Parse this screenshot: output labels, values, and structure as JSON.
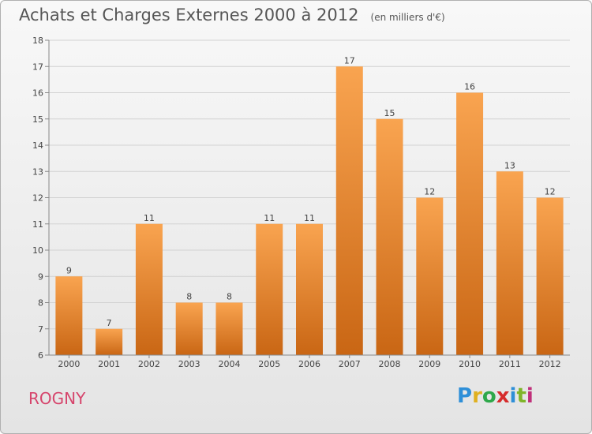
{
  "header": {
    "title": "Achats et Charges Externes 2000 à 2012",
    "unit": "(en milliers d'€)"
  },
  "commune": "ROGNY",
  "logo": {
    "letters": [
      "P",
      "r",
      "o",
      "x",
      "i",
      "t",
      "i"
    ],
    "colors": [
      "#2e8fd8",
      "#e0b020",
      "#2ea84a",
      "#d62c2c",
      "#2e8fd8",
      "#7fb52a",
      "#c0307a"
    ]
  },
  "chart_data": {
    "type": "bar",
    "categories": [
      "2000",
      "2001",
      "2002",
      "2003",
      "2004",
      "2005",
      "2006",
      "2007",
      "2008",
      "2009",
      "2010",
      "2011",
      "2012"
    ],
    "values": [
      9,
      7,
      11,
      8,
      8,
      11,
      11,
      17,
      15,
      12,
      16,
      13,
      12
    ],
    "value_labels": [
      "9",
      "7",
      "11",
      "8",
      "8",
      "11",
      "11",
      "17",
      "15",
      "12",
      "16",
      "13",
      "12"
    ],
    "ylim": [
      6,
      18
    ],
    "yticks": [
      "6",
      "7",
      "8",
      "9",
      "10",
      "11",
      "12",
      "13",
      "14",
      "15",
      "16",
      "17",
      "18"
    ],
    "grid": true,
    "bar_color_top": "#f9a450",
    "bar_color_bottom": "#c96614"
  }
}
